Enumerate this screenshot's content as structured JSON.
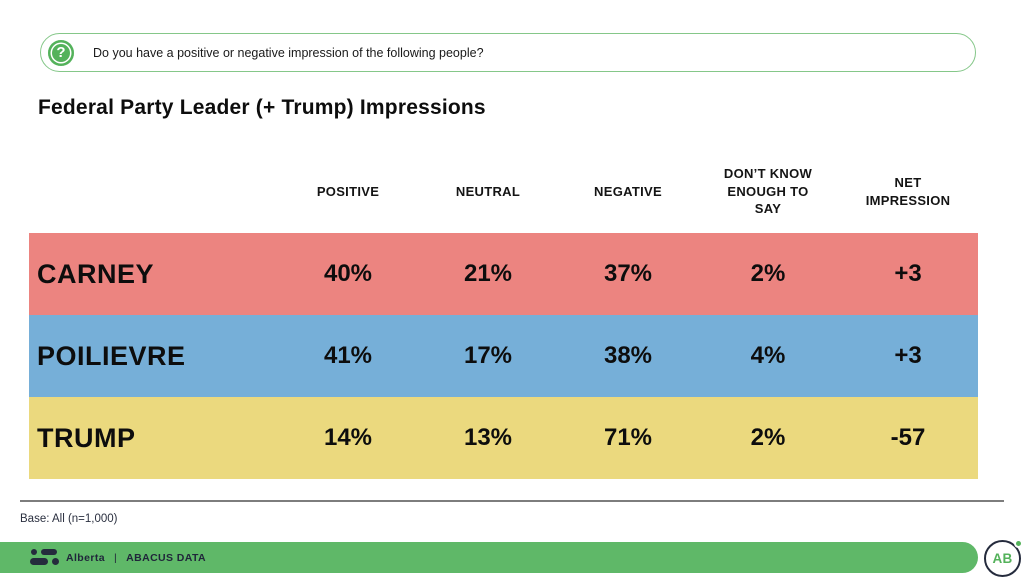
{
  "banner": {
    "icon": "question-bubble-icon",
    "question": "Do you have a positive or negative impression of the following people?",
    "icon_glyph": "?"
  },
  "title": "Federal Party Leader (+ Trump) Impressions",
  "table": {
    "columns": [
      "POSITIVE",
      "NEUTRAL",
      "NEGATIVE",
      "DON’T KNOW\nENOUGH TO\nSAY",
      "NET\nIMPRESSION"
    ],
    "rows": [
      {
        "label": "CARNEY",
        "color": "#ec8480",
        "values": [
          "40%",
          "21%",
          "37%",
          "2%",
          "+3"
        ]
      },
      {
        "label": "POILIEVRE",
        "color": "#76afd8",
        "values": [
          "41%",
          "17%",
          "38%",
          "4%",
          "+3"
        ]
      },
      {
        "label": "TRUMP",
        "color": "#ebd97e",
        "values": [
          "14%",
          "13%",
          "71%",
          "2%",
          "-57"
        ]
      }
    ]
  },
  "chart_data": {
    "type": "table",
    "title": "Federal Party Leader (+ Trump) Impressions",
    "question": "Do you have a positive or negative impression of the following people?",
    "columns": [
      "POSITIVE",
      "NEUTRAL",
      "NEGATIVE",
      "DON'T KNOW ENOUGH TO SAY",
      "NET IMPRESSION"
    ],
    "rows": [
      {
        "label": "CARNEY",
        "positive": 40,
        "neutral": 21,
        "negative": 37,
        "dont_know_enough_to_say": 2,
        "net_impression": 3
      },
      {
        "label": "POILIEVRE",
        "positive": 41,
        "neutral": 17,
        "negative": 38,
        "dont_know_enough_to_say": 4,
        "net_impression": 3
      },
      {
        "label": "TRUMP",
        "positive": 14,
        "neutral": 13,
        "negative": 71,
        "dont_know_enough_to_say": 2,
        "net_impression": -57
      }
    ],
    "row_colors": [
      "#ec8480",
      "#76afd8",
      "#ebd97e"
    ],
    "base": "All (n=1,000)"
  },
  "footnote": "Base: All (n=1,000)",
  "footer": {
    "brand_region": "Alberta",
    "separator": "|",
    "brand_name": "ABACUS DATA",
    "badge_text": "AB",
    "bar_color": "#5fb868",
    "navy_color": "#252b3d",
    "green_color": "#54b25b"
  }
}
